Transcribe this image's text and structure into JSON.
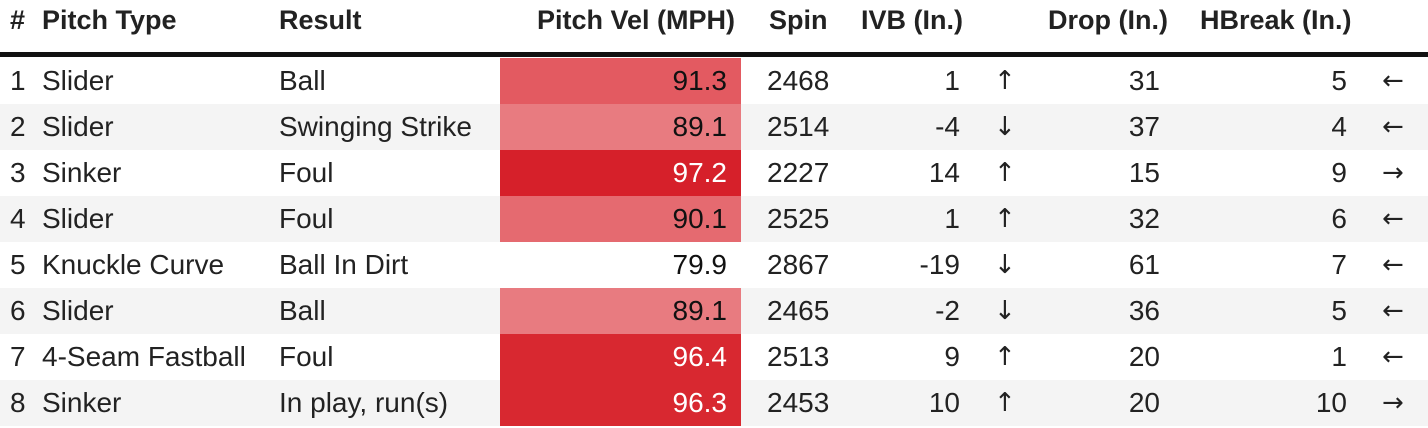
{
  "headers": {
    "num": "#",
    "pitch_type": "Pitch Type",
    "result": "Result",
    "velocity": "Pitch Vel (MPH)",
    "spin": "Spin",
    "ivb": "IVB (In.)",
    "drop": "Drop (In.)",
    "hbreak": "HBreak (In.)"
  },
  "colors": {
    "velocity_scale_low": "#ffffff",
    "velocity_scale_high": "#d6202a",
    "header_rule": "#111111",
    "row_alt": "#f4f4f4"
  },
  "icons": {
    "up": "↑",
    "down": "↓",
    "left": "←",
    "right": "→"
  },
  "rows": [
    {
      "num": "1",
      "pitch_type": "Slider",
      "result": "Ball",
      "velocity": "91.3",
      "spin": "2468",
      "ivb": "1",
      "ivb_arrow": "↑",
      "drop": "31",
      "hbreak": "5",
      "hbreak_arrow": "←",
      "vel_bg": "#e35a61",
      "vel_fg": "#111111"
    },
    {
      "num": "2",
      "pitch_type": "Slider",
      "result": "Swinging Strike",
      "velocity": "89.1",
      "spin": "2514",
      "ivb": "-4",
      "ivb_arrow": "↓",
      "drop": "37",
      "hbreak": "4",
      "hbreak_arrow": "←",
      "vel_bg": "#e87b80",
      "vel_fg": "#111111"
    },
    {
      "num": "3",
      "pitch_type": "Sinker",
      "result": "Foul",
      "velocity": "97.2",
      "spin": "2227",
      "ivb": "14",
      "ivb_arrow": "↑",
      "drop": "15",
      "hbreak": "9",
      "hbreak_arrow": "→",
      "vel_bg": "#d6202a",
      "vel_fg": "#ffffff"
    },
    {
      "num": "4",
      "pitch_type": "Slider",
      "result": "Foul",
      "velocity": "90.1",
      "spin": "2525",
      "ivb": "1",
      "ivb_arrow": "↑",
      "drop": "32",
      "hbreak": "6",
      "hbreak_arrow": "←",
      "vel_bg": "#e56a70",
      "vel_fg": "#111111"
    },
    {
      "num": "5",
      "pitch_type": "Knuckle Curve",
      "result": "Ball In Dirt",
      "velocity": "79.9",
      "spin": "2867",
      "ivb": "-19",
      "ivb_arrow": "↓",
      "drop": "61",
      "hbreak": "7",
      "hbreak_arrow": "←",
      "vel_bg": "#ffffff",
      "vel_fg": "#111111"
    },
    {
      "num": "6",
      "pitch_type": "Slider",
      "result": "Ball",
      "velocity": "89.1",
      "spin": "2465",
      "ivb": "-2",
      "ivb_arrow": "↓",
      "drop": "36",
      "hbreak": "5",
      "hbreak_arrow": "←",
      "vel_bg": "#e87b80",
      "vel_fg": "#111111"
    },
    {
      "num": "7",
      "pitch_type": "4-Seam Fastball",
      "result": "Foul",
      "velocity": "96.4",
      "spin": "2513",
      "ivb": "9",
      "ivb_arrow": "↑",
      "drop": "20",
      "hbreak": "1",
      "hbreak_arrow": "←",
      "vel_bg": "#d82830",
      "vel_fg": "#ffffff"
    },
    {
      "num": "8",
      "pitch_type": "Sinker",
      "result": "In play, run(s)",
      "velocity": "96.3",
      "spin": "2453",
      "ivb": "10",
      "ivb_arrow": "↑",
      "drop": "20",
      "hbreak": "10",
      "hbreak_arrow": "→",
      "vel_bg": "#d82830",
      "vel_fg": "#ffffff"
    }
  ]
}
